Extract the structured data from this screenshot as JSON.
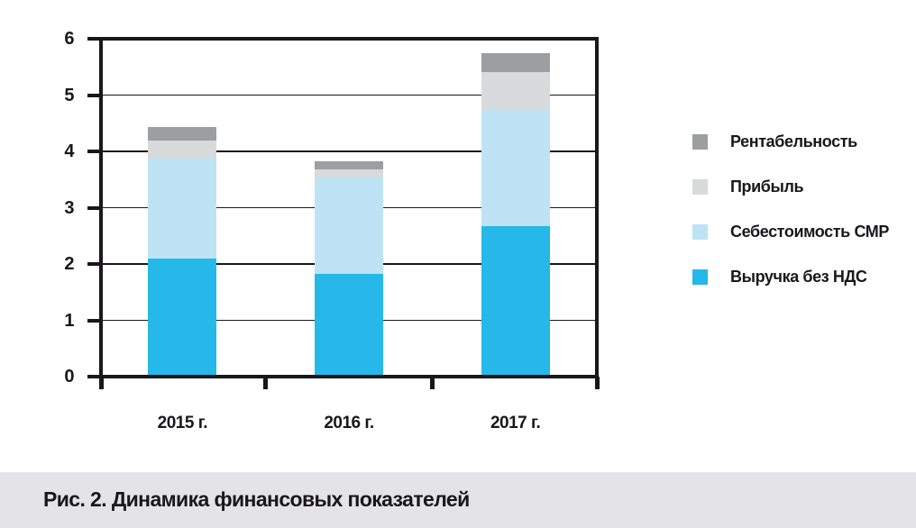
{
  "figure": {
    "caption": "Рис. 2. Динамика финансовых показателей"
  },
  "chart_data": {
    "type": "bar",
    "stacked": true,
    "title": "",
    "xlabel": "",
    "ylabel": "",
    "categories": [
      "2015 г.",
      "2016 г.",
      "2017 г."
    ],
    "series": [
      {
        "name": "Выручка без НДС",
        "color": "#25b8e8",
        "values": [
          2.1,
          1.82,
          2.68
        ]
      },
      {
        "name": "Себестоимость СМР",
        "color": "#bee3f5",
        "values": [
          1.78,
          1.71,
          2.07
        ]
      },
      {
        "name": "Прибыль",
        "color": "#d9dadc",
        "values": [
          0.32,
          0.15,
          0.66
        ]
      },
      {
        "name": "Рентабельность",
        "color": "#9c9ea0",
        "values": [
          0.24,
          0.14,
          0.33
        ]
      }
    ],
    "totals": [
      4.44,
      3.82,
      5.74
    ],
    "ylim": [
      0,
      6
    ],
    "yticks": [
      0,
      1,
      2,
      3,
      4,
      5,
      6
    ],
    "grid": true,
    "legend_position": "right",
    "legend_order_top_to_bottom": [
      "Рентабельность",
      "Прибыль",
      "Себестоимость СМР",
      "Выручка без НДС"
    ],
    "colors": {
      "axis": "#19171a",
      "caption_band": "#e4e4e6"
    }
  }
}
